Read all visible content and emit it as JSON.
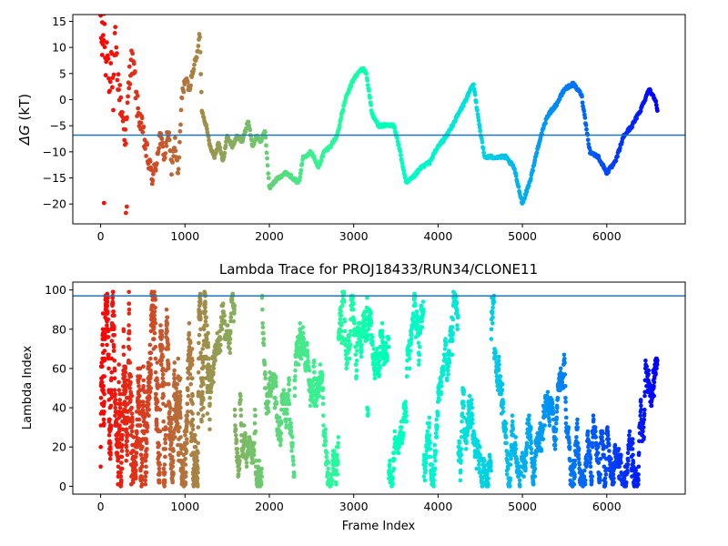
{
  "chart_data": [
    {
      "type": "scatter",
      "title": "",
      "xlabel": "",
      "ylabel_symbol": "ΔG",
      "ylabel_unit": "(kT)",
      "x_ticks": [
        "0",
        "1000",
        "2000",
        "3000",
        "4000",
        "5000",
        "6000"
      ],
      "y_ticks": [
        "15",
        "10",
        "5",
        "0",
        "−5",
        "−10",
        "−15",
        "−20"
      ],
      "x_tick_values": [
        0,
        1000,
        2000,
        3000,
        4000,
        5000,
        6000
      ],
      "y_tick_values": [
        15,
        10,
        5,
        0,
        -5,
        -10,
        -15,
        -20
      ],
      "xlim": [
        -330,
        6930
      ],
      "ylim": [
        -23.8,
        16.3
      ],
      "reference_line": {
        "y": -6.8,
        "color": "#1f77b4"
      },
      "colormap": "rainbow (red at frame 0 → violet at last frame)",
      "frame_range": [
        0,
        6600
      ],
      "trace_keypoints": [
        [
          0,
          13
        ],
        [
          20,
          9
        ],
        [
          40,
          14
        ],
        [
          60,
          6
        ],
        [
          80,
          11
        ],
        [
          100,
          3
        ],
        [
          130,
          9
        ],
        [
          150,
          -2
        ],
        [
          170,
          12
        ],
        [
          200,
          5
        ],
        [
          230,
          0
        ],
        [
          260,
          -3
        ],
        [
          300,
          -8
        ],
        [
          330,
          2
        ],
        [
          360,
          8
        ],
        [
          400,
          5
        ],
        [
          430,
          -1
        ],
        [
          470,
          -4
        ],
        [
          520,
          -8
        ],
        [
          580,
          -13
        ],
        [
          620,
          -15
        ],
        [
          650,
          -13
        ],
        [
          700,
          -7
        ],
        [
          760,
          -11
        ],
        [
          800,
          -6
        ],
        [
          840,
          -13
        ],
        [
          880,
          -8
        ],
        [
          920,
          -15
        ],
        [
          960,
          0
        ],
        [
          1000,
          4
        ],
        [
          1050,
          2
        ],
        [
          1100,
          6
        ],
        [
          1150,
          9
        ],
        [
          1175,
          13
        ],
        [
          1200,
          -2
        ],
        [
          1250,
          -5
        ],
        [
          1300,
          -9
        ],
        [
          1350,
          -11
        ],
        [
          1400,
          -8
        ],
        [
          1450,
          -12
        ],
        [
          1500,
          -7
        ],
        [
          1560,
          -9
        ],
        [
          1620,
          -7
        ],
        [
          1680,
          -8
        ],
        [
          1750,
          -4
        ],
        [
          1800,
          -9
        ],
        [
          1850,
          -7
        ],
        [
          1900,
          -8
        ],
        [
          1950,
          -6
        ],
        [
          2000,
          -17
        ],
        [
          2100,
          -15
        ],
        [
          2200,
          -14
        ],
        [
          2280,
          -15
        ],
        [
          2350,
          -16
        ],
        [
          2400,
          -11
        ],
        [
          2500,
          -10
        ],
        [
          2580,
          -13
        ],
        [
          2650,
          -10
        ],
        [
          2720,
          -9
        ],
        [
          2800,
          -7
        ],
        [
          2900,
          0
        ],
        [
          3000,
          4
        ],
        [
          3050,
          5
        ],
        [
          3100,
          6
        ],
        [
          3150,
          5
        ],
        [
          3220,
          -3
        ],
        [
          3300,
          -5
        ],
        [
          3400,
          -5
        ],
        [
          3480,
          -5
        ],
        [
          3550,
          -10
        ],
        [
          3620,
          -16
        ],
        [
          3700,
          -15
        ],
        [
          3800,
          -13
        ],
        [
          3900,
          -12
        ],
        [
          4000,
          -9
        ],
        [
          4100,
          -7
        ],
        [
          4200,
          -4
        ],
        [
          4300,
          -1
        ],
        [
          4420,
          3
        ],
        [
          4500,
          -6
        ],
        [
          4550,
          -11
        ],
        [
          4650,
          -11
        ],
        [
          4800,
          -11
        ],
        [
          4900,
          -13
        ],
        [
          5000,
          -20
        ],
        [
          5100,
          -15
        ],
        [
          5200,
          -8
        ],
        [
          5300,
          -3
        ],
        [
          5400,
          -1
        ],
        [
          5500,
          2
        ],
        [
          5600,
          3
        ],
        [
          5700,
          1
        ],
        [
          5800,
          -10
        ],
        [
          5900,
          -11
        ],
        [
          6000,
          -14
        ],
        [
          6100,
          -12
        ],
        [
          6200,
          -7
        ],
        [
          6300,
          -5
        ],
        [
          6400,
          -2
        ],
        [
          6500,
          2
        ],
        [
          6580,
          0
        ],
        [
          6610,
          -3.5
        ]
      ]
    },
    {
      "type": "scatter",
      "title": "Lambda Trace for PROJ18433/RUN34/CLONE11",
      "xlabel": "Frame Index",
      "ylabel": "Lambda Index",
      "x_ticks": [
        "0",
        "1000",
        "2000",
        "3000",
        "4000",
        "5000",
        "6000"
      ],
      "y_ticks": [
        "100",
        "80",
        "60",
        "40",
        "20",
        "0"
      ],
      "x_tick_values": [
        0,
        1000,
        2000,
        3000,
        4000,
        5000,
        6000
      ],
      "y_tick_values": [
        100,
        80,
        60,
        40,
        20,
        0
      ],
      "xlim": [
        -330,
        6930
      ],
      "ylim": [
        -4,
        104
      ],
      "reference_line": {
        "y": 97,
        "color": "#1f77b4"
      },
      "colormap": "rainbow (red at frame 0 → violet at last frame)",
      "frame_range": [
        0,
        6600
      ],
      "lambda_range": [
        0,
        99
      ],
      "point_count": 6600
    }
  ]
}
